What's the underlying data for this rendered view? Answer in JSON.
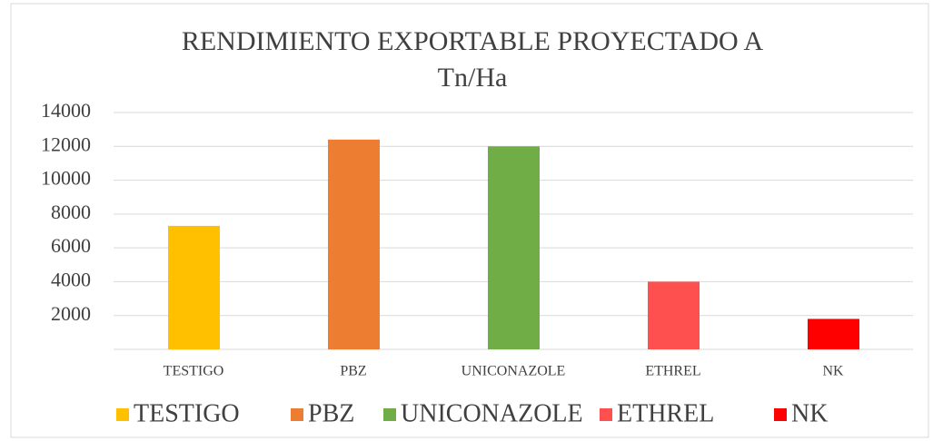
{
  "chart_data": {
    "type": "bar",
    "title": "RENDIMIENTO EXPORTABLE PROYECTADO A Tn/Ha",
    "categories": [
      "TESTIGO",
      "PBZ",
      "UNICONAZOLE",
      "ETHREL",
      "NK"
    ],
    "values": [
      7300,
      12400,
      12000,
      4000,
      1800
    ],
    "colors": [
      "#ffc000",
      "#ed7d31",
      "#70ad47",
      "#ff5050",
      "#ff0000"
    ],
    "ylim": [
      0,
      14000
    ],
    "yticks": [
      2000,
      4000,
      6000,
      8000,
      10000,
      12000,
      14000
    ],
    "grid": true,
    "legend": "bottom"
  }
}
